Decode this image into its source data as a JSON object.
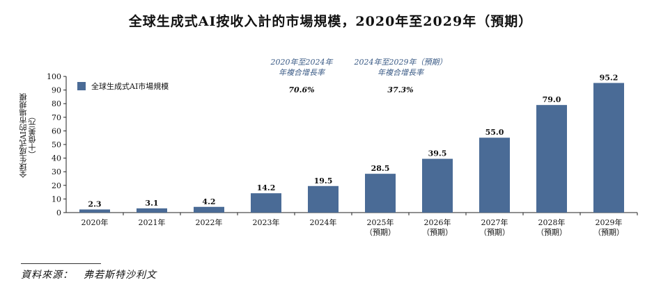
{
  "title": "全球生成式AI按收入計的市場規模，2020年至2029年（預期）",
  "source": "資料來源：　弗若斯特沙利文",
  "colors": {
    "bar": "#4a6b96",
    "axis": "#222222"
  },
  "annotations": [
    {
      "period": "2020年至2024年",
      "label": "年複合增長率",
      "rate": "70.6%"
    },
    {
      "period": "2024年至2029年（預期）",
      "label": "年複合增長率",
      "rate": "37.3%"
    }
  ],
  "chart_data": {
    "type": "bar",
    "ylabel_line1": "全球生成式AI的市場規模",
    "ylabel_line2": "（十億美元）",
    "ylim": [
      0,
      100
    ],
    "yticks": [
      "0",
      "10",
      "20",
      "30",
      "40",
      "50",
      "60",
      "70",
      "80",
      "90",
      "100"
    ],
    "legend": "全球生成式AI市場規模",
    "legend_position": "top-left",
    "grid": false,
    "categories": [
      [
        "2020年",
        ""
      ],
      [
        "2021年",
        ""
      ],
      [
        "2022年",
        ""
      ],
      [
        "2023年",
        ""
      ],
      [
        "2024年",
        ""
      ],
      [
        "2025年",
        "（預期）"
      ],
      [
        "2026年",
        "（預期）"
      ],
      [
        "2027年",
        "（預期）"
      ],
      [
        "2028年",
        "（預期）"
      ],
      [
        "2029年",
        "（預期）"
      ]
    ],
    "values": [
      2.3,
      3.1,
      4.2,
      14.2,
      19.5,
      28.5,
      39.5,
      55.0,
      79.0,
      95.2
    ],
    "value_labels": [
      "2.3",
      "3.1",
      "4.2",
      "14.2",
      "19.5",
      "28.5",
      "39.5",
      "55.0",
      "79.0",
      "95.2"
    ]
  }
}
